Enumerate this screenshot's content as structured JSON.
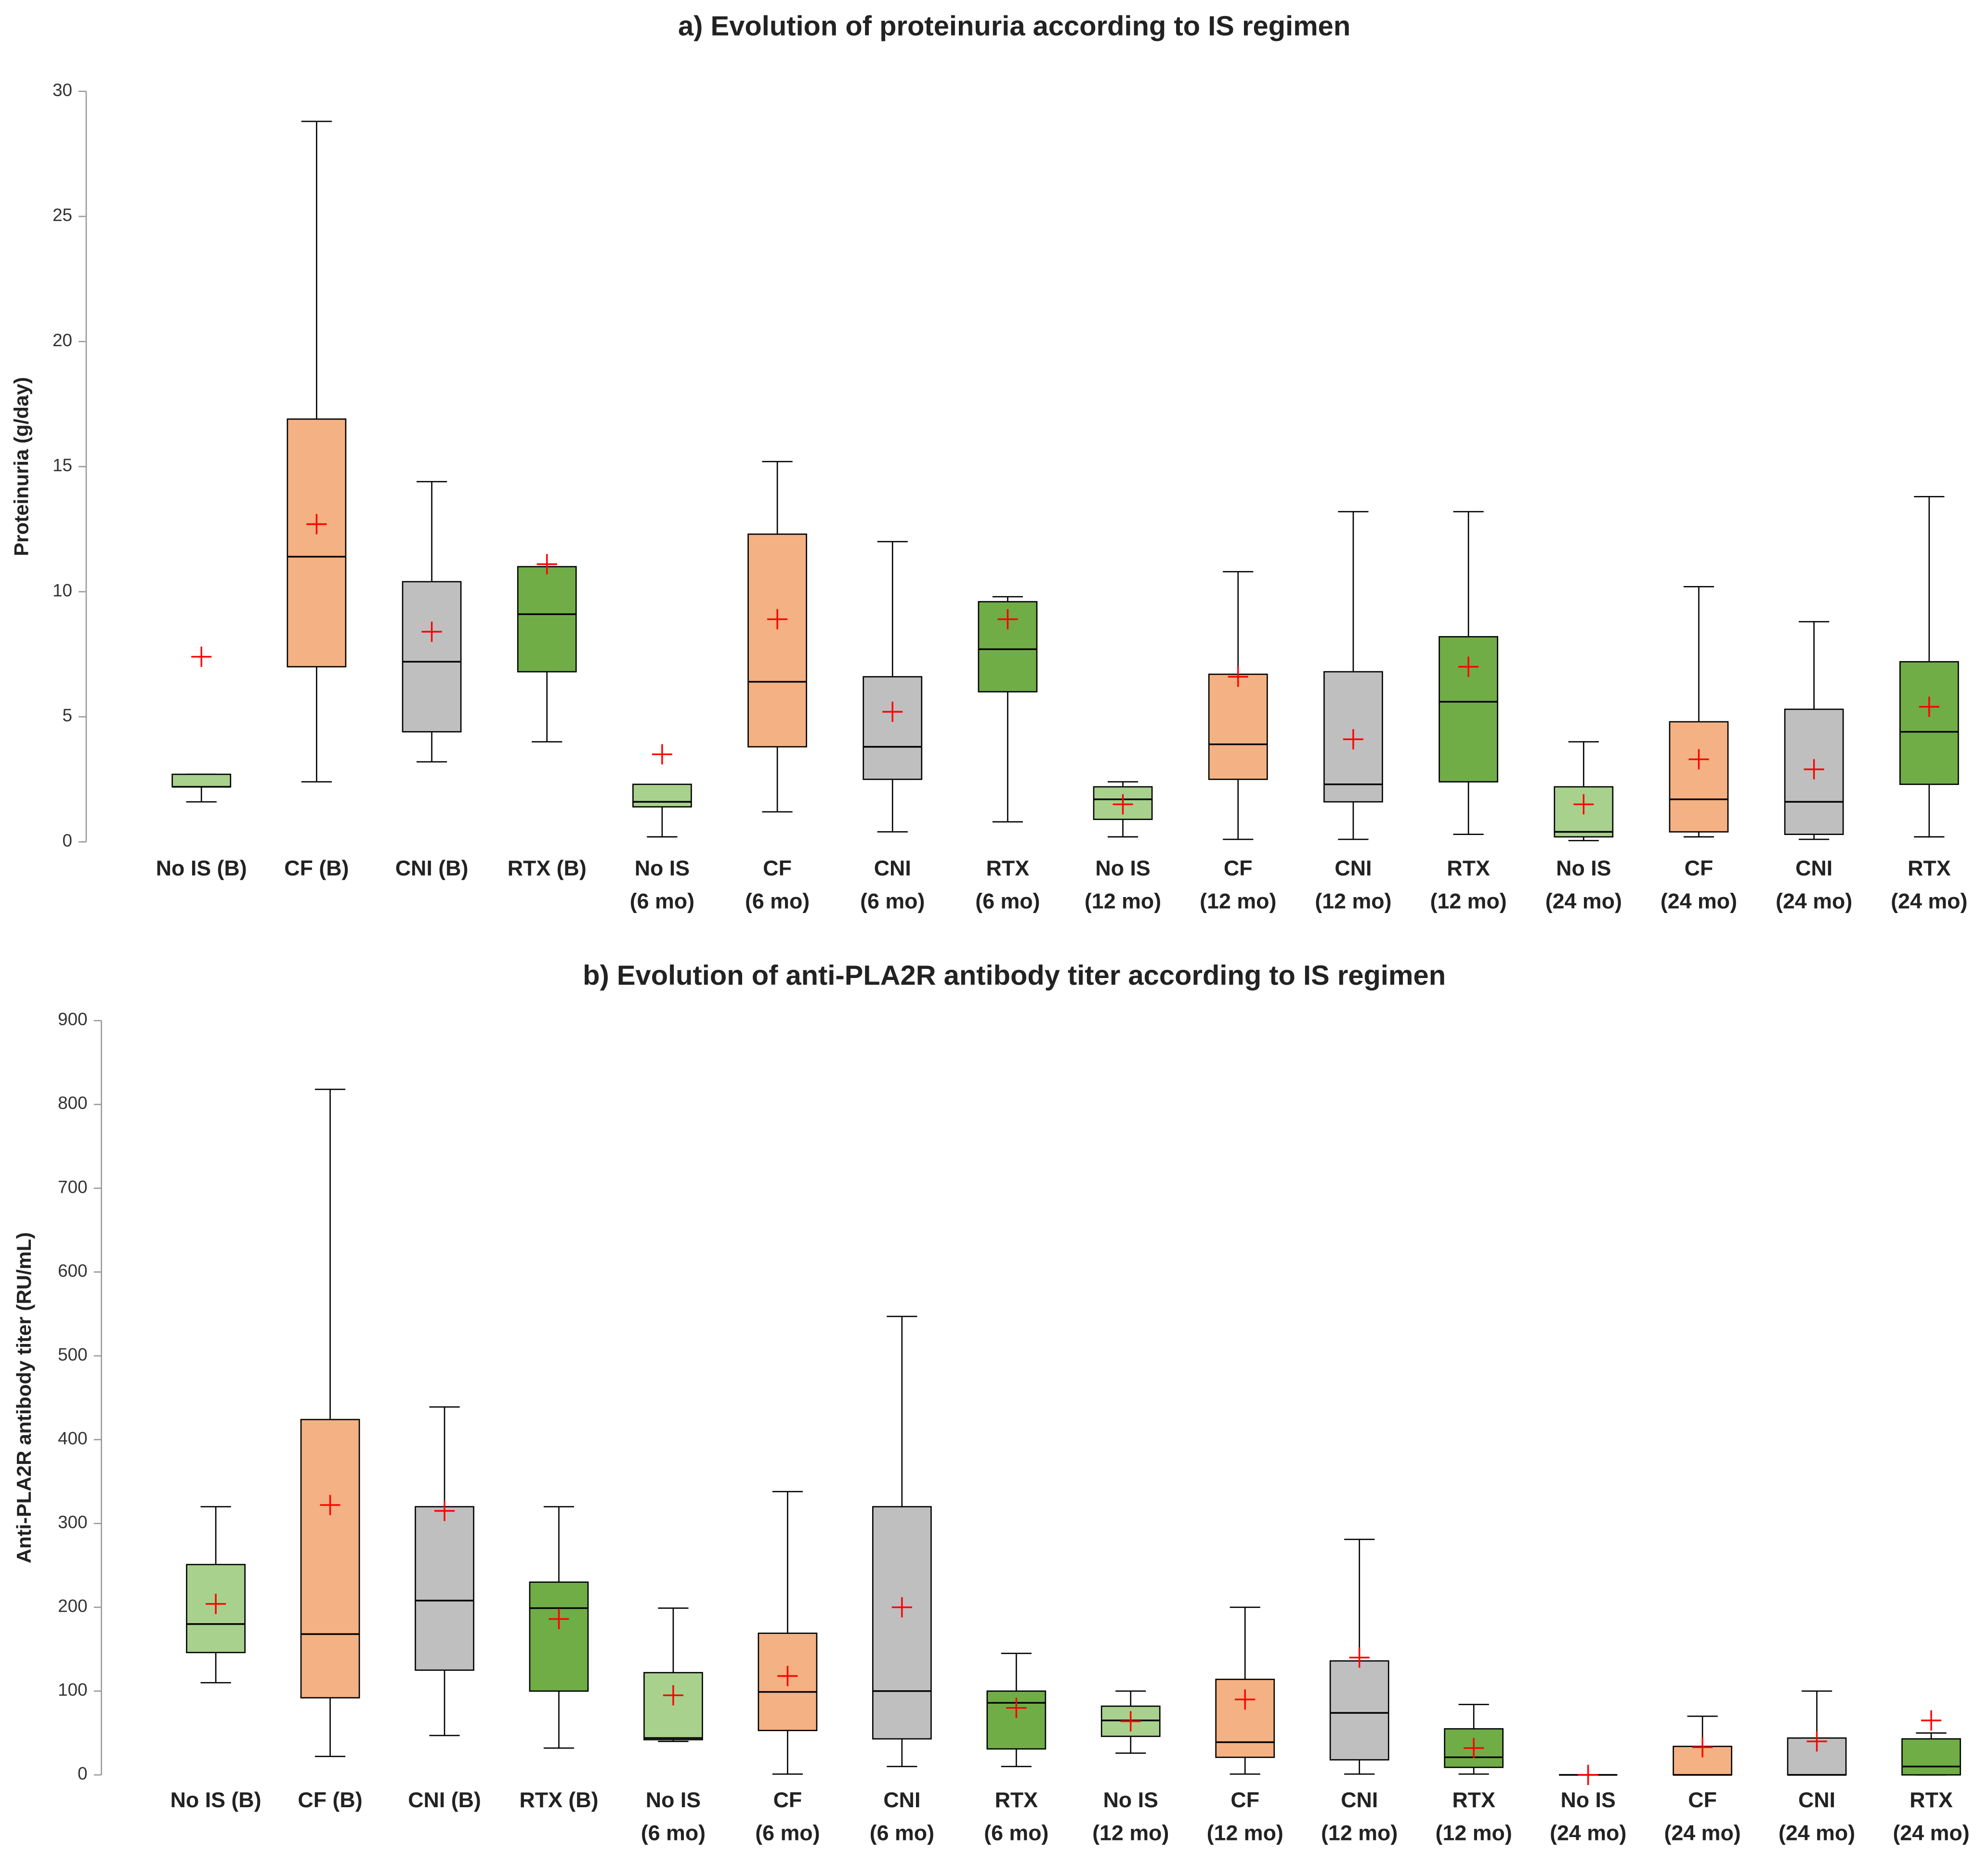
{
  "chart_data": [
    {
      "type": "box",
      "title": "a) Evolution of proteinuria  according to IS regimen",
      "y_label": "Proteinuria (g/day)",
      "categories": [
        [
          "No IS (B)"
        ],
        [
          "CF (B)"
        ],
        [
          "CNI (B)"
        ],
        [
          "RTX (B)"
        ],
        [
          "No IS",
          "(6 mo)"
        ],
        [
          "CF",
          "(6 mo)"
        ],
        [
          "CNI",
          "(6 mo)"
        ],
        [
          "RTX",
          "(6 mo)"
        ],
        [
          "No IS",
          "(12 mo)"
        ],
        [
          "CF",
          "(12 mo)"
        ],
        [
          "CNI",
          "(12 mo)"
        ],
        [
          "RTX",
          "(12 mo)"
        ],
        [
          "No IS",
          "(24 mo)"
        ],
        [
          "CF",
          "(24 mo)"
        ],
        [
          "CNI",
          "(24 mo)"
        ],
        [
          "RTX",
          "(24 mo)"
        ]
      ],
      "colors": [
        "#a9d18e",
        "#f4b183",
        "#bfbfbf",
        "#70ad47",
        "#a9d18e",
        "#f4b183",
        "#bfbfbf",
        "#70ad47",
        "#a9d18e",
        "#f4b183",
        "#bfbfbf",
        "#70ad47",
        "#a9d18e",
        "#f4b183",
        "#bfbfbf",
        "#70ad47"
      ],
      "min": [
        1.6,
        2.4,
        3.2,
        4.0,
        0.2,
        1.2,
        0.4,
        0.8,
        0.2,
        0.1,
        0.1,
        0.3,
        0.05,
        0.2,
        0.1,
        0.2
      ],
      "q1": [
        2.2,
        7.0,
        4.4,
        6.8,
        1.4,
        3.8,
        2.5,
        6.0,
        0.9,
        2.5,
        1.6,
        2.4,
        0.2,
        0.4,
        0.3,
        2.3
      ],
      "median": [
        2.2,
        11.4,
        7.2,
        9.1,
        1.6,
        6.4,
        3.8,
        7.7,
        1.7,
        3.9,
        2.3,
        5.6,
        0.4,
        1.7,
        1.6,
        4.4
      ],
      "q3": [
        2.7,
        16.9,
        10.4,
        11.0,
        2.3,
        12.3,
        6.6,
        9.6,
        2.2,
        6.7,
        6.8,
        8.2,
        2.2,
        4.8,
        5.3,
        7.2
      ],
      "max": [
        2.7,
        28.8,
        14.4,
        11.0,
        2.3,
        15.2,
        12.0,
        9.8,
        2.4,
        10.8,
        13.2,
        13.2,
        4.0,
        10.2,
        8.8,
        13.8
      ],
      "mean": [
        7.4,
        12.7,
        8.4,
        11.1,
        3.5,
        8.9,
        5.2,
        8.9,
        1.5,
        6.6,
        4.1,
        7.0,
        1.5,
        3.3,
        2.9,
        5.4
      ],
      "mean_color": "#ff0000",
      "ylim": [
        0,
        30
      ],
      "yticks": [
        0,
        5,
        10,
        15,
        20,
        25,
        30
      ]
    },
    {
      "type": "box",
      "title": "b) Evolution of anti-PLA2R antibody titer according to IS regimen",
      "y_label": "Anti-PLA2R antibody titer  (RU/mL)",
      "categories": [
        [
          "No IS (B)"
        ],
        [
          "CF (B)"
        ],
        [
          "CNI (B)"
        ],
        [
          "RTX (B)"
        ],
        [
          "No IS",
          "(6 mo)"
        ],
        [
          "CF",
          "(6 mo)"
        ],
        [
          "CNI",
          "(6 mo)"
        ],
        [
          "RTX",
          "(6 mo)"
        ],
        [
          "No IS",
          "(12 mo)"
        ],
        [
          "CF",
          "(12 mo)"
        ],
        [
          "CNI",
          "(12 mo)"
        ],
        [
          "RTX",
          "(12 mo)"
        ],
        [
          "No IS",
          "(24 mo)"
        ],
        [
          "CF",
          "(24 mo)"
        ],
        [
          "CNI",
          "(24 mo)"
        ],
        [
          "RTX",
          "(24 mo)"
        ]
      ],
      "colors": [
        "#a9d18e",
        "#f4b183",
        "#bfbfbf",
        "#70ad47",
        "#a9d18e",
        "#f4b183",
        "#bfbfbf",
        "#70ad47",
        "#a9d18e",
        "#f4b183",
        "#bfbfbf",
        "#70ad47",
        "#a9d18e",
        "#f4b183",
        "#bfbfbf",
        "#70ad47"
      ],
      "min": [
        110,
        22,
        47,
        32,
        40,
        1,
        10,
        10,
        26,
        1,
        1,
        1,
        0,
        0,
        0,
        0
      ],
      "q1": [
        146,
        92,
        125,
        100,
        42,
        53,
        43,
        31,
        46,
        21,
        18,
        9,
        0,
        0,
        0,
        0
      ],
      "median": [
        180,
        168,
        208,
        199,
        44,
        99,
        100,
        86,
        65,
        39,
        74,
        21,
        0,
        0,
        0,
        10
      ],
      "q3": [
        251,
        424,
        320,
        230,
        122,
        169,
        320,
        100,
        82,
        114,
        136,
        55,
        0,
        34,
        44,
        43
      ],
      "max": [
        320,
        818,
        439,
        320,
        199,
        338,
        547,
        145,
        100,
        200,
        281,
        84,
        0,
        70,
        100,
        50
      ],
      "mean": [
        204,
        322,
        315,
        186,
        95,
        118,
        200,
        80,
        64,
        90,
        140,
        32,
        0,
        33,
        40,
        65
      ],
      "mean_color": "#ff0000",
      "ylim": [
        0,
        900
      ],
      "yticks": [
        0,
        100,
        200,
        300,
        400,
        500,
        600,
        700,
        800,
        900
      ]
    }
  ]
}
